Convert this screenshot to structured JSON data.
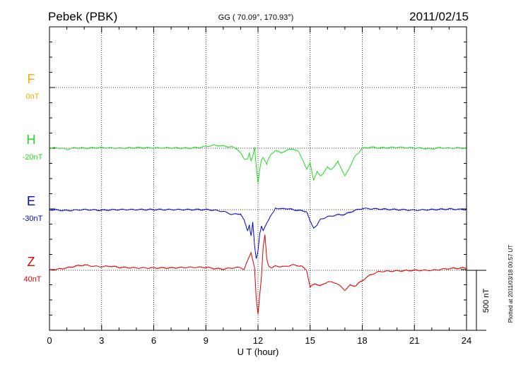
{
  "chart_data": {
    "type": "line",
    "station": "Pebek (PBK)",
    "coords": "GG ( 70.09°, 170.93°)",
    "date": "2011/02/15",
    "xlabel": "U T (hour)",
    "xlim": [
      0,
      24
    ],
    "xticks": [
      "0",
      "3",
      "6",
      "9",
      "12",
      "15",
      "18",
      "21",
      "24"
    ],
    "scale_label": "500 nT",
    "plotted_note": "Plotted at 2011/03/18 00:57 UT",
    "series": [
      {
        "name": "F",
        "baseline": "0nT",
        "color": "#ffaa00",
        "x": [],
        "y": []
      },
      {
        "name": "H",
        "baseline": "-20nT",
        "color": "#22dd22",
        "x": [
          0,
          0.5,
          1,
          1.5,
          2,
          3,
          4,
          5,
          6,
          7,
          8,
          8.5,
          9,
          9.5,
          10,
          10.5,
          10.8,
          11,
          11.2,
          11.4,
          11.5,
          11.6,
          11.7,
          11.8,
          11.9,
          12,
          12.1,
          12.2,
          12.3,
          12.4,
          12.5,
          12.6,
          12.8,
          13,
          13.3,
          13.6,
          14,
          14.3,
          14.6,
          14.8,
          15,
          15.2,
          15.4,
          15.6,
          15.8,
          16,
          16.2,
          16.4,
          16.6,
          16.8,
          17,
          17.2,
          17.4,
          17.6,
          17.8,
          18,
          18.5,
          19,
          19.5,
          20,
          21,
          22,
          22.5,
          23,
          23.5,
          24
        ],
        "y": [
          0,
          4,
          -10,
          5,
          0,
          5,
          0,
          5,
          3,
          3,
          0,
          5,
          15,
          25,
          18,
          10,
          -5,
          -40,
          -90,
          -85,
          -40,
          -110,
          -70,
          10,
          -150,
          -290,
          -180,
          -100,
          -75,
          -100,
          -130,
          -90,
          -45,
          -15,
          -40,
          -20,
          -5,
          -25,
          -100,
          -180,
          -120,
          -265,
          -200,
          -230,
          -200,
          -160,
          -175,
          -155,
          -110,
          -170,
          -235,
          -180,
          -120,
          -65,
          -35,
          0,
          8,
          3,
          5,
          8,
          3,
          -5,
          5,
          0,
          3,
          0
        ]
      },
      {
        "name": "E",
        "baseline": "-30nT",
        "color": "#0000cc",
        "x": [
          0,
          1,
          2,
          3,
          4,
          5,
          6,
          7,
          8,
          9,
          9.5,
          10,
          10.5,
          11,
          11.2,
          11.4,
          11.5,
          11.6,
          11.7,
          11.8,
          11.9,
          12,
          12.1,
          12.2,
          12.3,
          12.5,
          12.7,
          12.9,
          13,
          13.3,
          13.6,
          14,
          14.5,
          14.8,
          15,
          15.2,
          15.4,
          15.6,
          16,
          16.5,
          17,
          17.5,
          18,
          19,
          20,
          21,
          22,
          23,
          24
        ],
        "y": [
          0,
          -8,
          0,
          -5,
          0,
          0,
          0,
          0,
          0,
          0,
          -5,
          -15,
          -40,
          -35,
          -90,
          -175,
          -125,
          -220,
          -110,
          -300,
          -410,
          -340,
          -200,
          -140,
          -180,
          -110,
          -60,
          -20,
          15,
          5,
          10,
          0,
          -10,
          -15,
          -100,
          -150,
          -130,
          -80,
          -60,
          -45,
          -40,
          -10,
          10,
          5,
          0,
          -5,
          0,
          5,
          0
        ]
      },
      {
        "name": "Z",
        "baseline": "40nT",
        "color": "#dd0000",
        "x": [
          0,
          0.5,
          1,
          1.5,
          2,
          2.5,
          3,
          3.5,
          4,
          5,
          6,
          7,
          8,
          9,
          9.5,
          10,
          10.5,
          11,
          11.2,
          11.4,
          11.6,
          11.8,
          11.9,
          12,
          12.1,
          12.2,
          12.3,
          12.4,
          12.5,
          12.6,
          12.8,
          13,
          13.5,
          14,
          14.5,
          14.8,
          15,
          15.3,
          15.6,
          16,
          16.5,
          17,
          17.3,
          17.6,
          18,
          18.5,
          19,
          20,
          21,
          22,
          23,
          24
        ],
        "y": [
          0,
          10,
          20,
          35,
          45,
          35,
          30,
          35,
          25,
          20,
          20,
          20,
          25,
          25,
          15,
          10,
          20,
          25,
          5,
          80,
          150,
          20,
          -240,
          -370,
          -200,
          -50,
          200,
          290,
          100,
          40,
          20,
          35,
          30,
          45,
          35,
          0,
          -140,
          -110,
          -130,
          -95,
          -105,
          -165,
          -125,
          -130,
          -85,
          -35,
          -10,
          -5,
          0,
          0,
          15,
          20
        ]
      }
    ]
  }
}
